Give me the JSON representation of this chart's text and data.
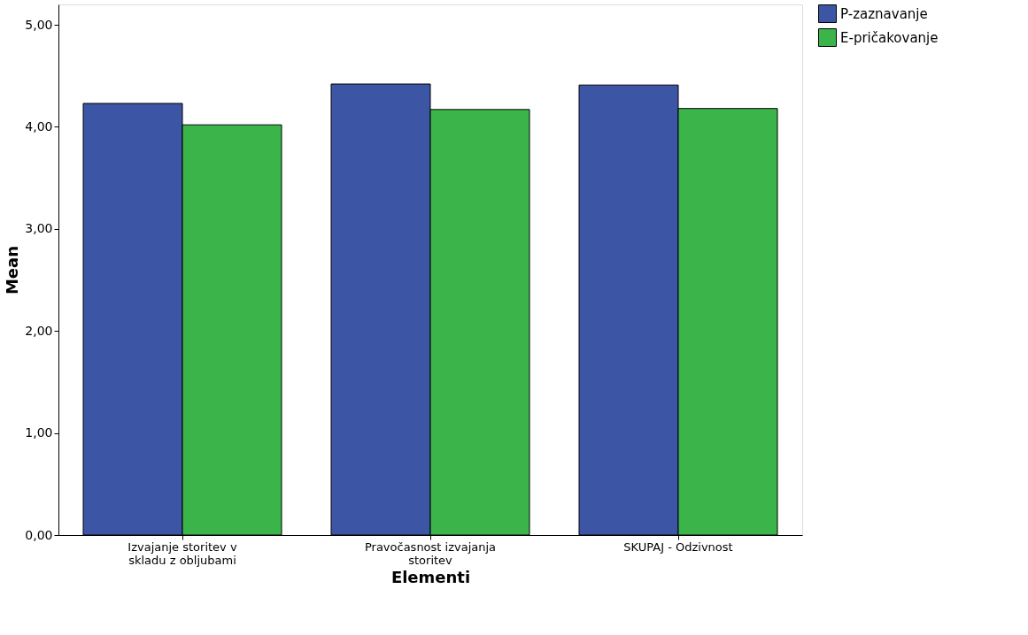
{
  "chart_data": {
    "type": "bar",
    "xlabel": "Elementi",
    "ylabel": "Mean",
    "categories": [
      "Izvajanje storitev v skladu z obljubami",
      "Pravočasnost izvajanja storitev",
      "SKUPAJ - Odzivnost"
    ],
    "series": [
      {
        "name": "P-zaznavanje",
        "color": "#3d55a5",
        "values": [
          4.23,
          4.42,
          4.41
        ]
      },
      {
        "name": "E-pričakovanje",
        "color": "#3bb44a",
        "values": [
          4.02,
          4.17,
          4.18
        ]
      }
    ],
    "ylim": [
      0,
      5.2
    ],
    "yticks": [
      {
        "value": 0,
        "label": "0,00"
      },
      {
        "value": 1,
        "label": "1,00"
      },
      {
        "value": 2,
        "label": "2,00"
      },
      {
        "value": 3,
        "label": "3,00"
      },
      {
        "value": 4,
        "label": "4,00"
      },
      {
        "value": 5,
        "label": "5,00"
      }
    ],
    "grid": false,
    "legend": "top right"
  }
}
